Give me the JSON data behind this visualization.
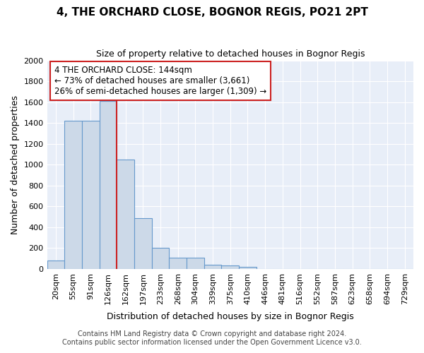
{
  "title": "4, THE ORCHARD CLOSE, BOGNOR REGIS, PO21 2PT",
  "subtitle": "Size of property relative to detached houses in Bognor Regis",
  "xlabel": "Distribution of detached houses by size in Bognor Regis",
  "ylabel": "Number of detached properties",
  "categories": [
    "20sqm",
    "55sqm",
    "91sqm",
    "126sqm",
    "162sqm",
    "197sqm",
    "233sqm",
    "268sqm",
    "304sqm",
    "339sqm",
    "375sqm",
    "410sqm",
    "446sqm",
    "481sqm",
    "516sqm",
    "552sqm",
    "587sqm",
    "623sqm",
    "658sqm",
    "694sqm",
    "729sqm"
  ],
  "values": [
    80,
    1420,
    1420,
    1610,
    1050,
    490,
    200,
    105,
    105,
    40,
    30,
    20,
    0,
    0,
    0,
    0,
    0,
    0,
    0,
    0,
    0
  ],
  "bar_color": "#ccd9e8",
  "bar_edge_color": "#6699cc",
  "annotation_line1": "4 THE ORCHARD CLOSE: 144sqm",
  "annotation_line2": "← 73% of detached houses are smaller (3,661)",
  "annotation_line3": "26% of semi-detached houses are larger (1,309) →",
  "annotation_box_color": "#ffffff",
  "annotation_box_edge": "#cc2222",
  "red_line_color": "#cc2222",
  "ylim": [
    0,
    2000
  ],
  "yticks": [
    0,
    200,
    400,
    600,
    800,
    1000,
    1200,
    1400,
    1600,
    1800,
    2000
  ],
  "footer_line1": "Contains HM Land Registry data © Crown copyright and database right 2024.",
  "footer_line2": "Contains public sector information licensed under the Open Government Licence v3.0.",
  "fig_bg_color": "#ffffff",
  "plot_bg_color": "#e8eef8",
  "grid_color": "#ffffff",
  "title_fontsize": 11,
  "subtitle_fontsize": 9,
  "axis_label_fontsize": 9,
  "tick_fontsize": 8,
  "annot_fontsize": 8.5,
  "footer_fontsize": 7
}
